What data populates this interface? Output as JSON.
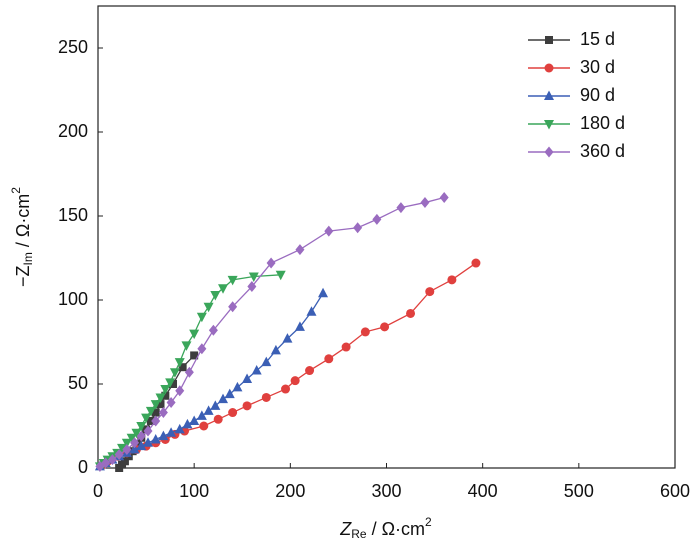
{
  "chart_data": {
    "type": "line",
    "xlabel": [
      "Z",
      "Re",
      " / Ω·cm",
      "2"
    ],
    "ylabel": [
      "−Z",
      "Im",
      " / Ω·cm",
      "2"
    ],
    "xlim": [
      0,
      600
    ],
    "xticks": [
      0,
      100,
      200,
      300,
      400,
      500,
      600
    ],
    "ylim": [
      0,
      275
    ],
    "yticks": [
      0,
      50,
      100,
      150,
      200,
      250
    ],
    "legend": "upper right",
    "series": [
      {
        "name": "15 d",
        "color": "#3d3d3d",
        "marker": "square",
        "x": [
          22,
          25,
          28,
          32,
          36,
          40,
          45,
          50,
          55,
          60,
          65,
          70,
          78,
          88,
          100
        ],
        "values": [
          0,
          2,
          4,
          7,
          10,
          14,
          18,
          23,
          28,
          33,
          38,
          43,
          50,
          60,
          67
        ]
      },
      {
        "name": "30 d",
        "color": "#e0403e",
        "marker": "circle",
        "x": [
          5,
          10,
          20,
          30,
          40,
          50,
          60,
          70,
          80,
          90,
          110,
          125,
          140,
          155,
          175,
          195,
          205,
          220,
          240,
          258,
          278,
          298,
          325,
          345,
          368,
          393
        ],
        "values": [
          2,
          4,
          7,
          9,
          11,
          13,
          15,
          17,
          20,
          22,
          25,
          29,
          33,
          37,
          42,
          47,
          52,
          58,
          65,
          72,
          81,
          84,
          92,
          105,
          112,
          122
        ]
      },
      {
        "name": "90 d",
        "color": "#3b5fb5",
        "marker": "triangle",
        "x": [
          2,
          8,
          15,
          22,
          30,
          38,
          45,
          52,
          60,
          68,
          76,
          85,
          93,
          100,
          108,
          115,
          122,
          130,
          137,
          145,
          155,
          165,
          175,
          185,
          197,
          210,
          222,
          234
        ],
        "values": [
          1,
          3,
          5,
          7,
          9,
          11,
          13,
          15,
          17,
          19,
          21,
          23,
          26,
          28,
          31,
          34,
          37,
          41,
          44,
          48,
          53,
          58,
          63,
          70,
          77,
          84,
          93,
          104
        ]
      },
      {
        "name": "180 d",
        "color": "#3aa65a",
        "marker": "triangle-down",
        "x": [
          2,
          6,
          10,
          15,
          20,
          25,
          30,
          35,
          40,
          45,
          50,
          55,
          60,
          65,
          70,
          75,
          80,
          85,
          92,
          100,
          108,
          115,
          122,
          130,
          140,
          162,
          190
        ],
        "values": [
          1,
          3,
          5,
          7,
          9,
          12,
          15,
          18,
          21,
          25,
          30,
          34,
          38,
          42,
          47,
          51,
          57,
          63,
          73,
          80,
          90,
          96,
          103,
          107,
          112,
          114,
          115
        ]
      },
      {
        "name": "360 d",
        "color": "#9a6cc0",
        "marker": "diamond",
        "x": [
          2,
          8,
          15,
          22,
          30,
          38,
          45,
          52,
          60,
          68,
          76,
          85,
          95,
          108,
          120,
          140,
          160,
          180,
          210,
          240,
          270,
          290,
          315,
          340,
          360
        ],
        "values": [
          1,
          3,
          5,
          8,
          11,
          15,
          19,
          22,
          28,
          33,
          39,
          46,
          57,
          71,
          82,
          96,
          108,
          122,
          130,
          141,
          143,
          148,
          155,
          158,
          161
        ]
      }
    ]
  }
}
